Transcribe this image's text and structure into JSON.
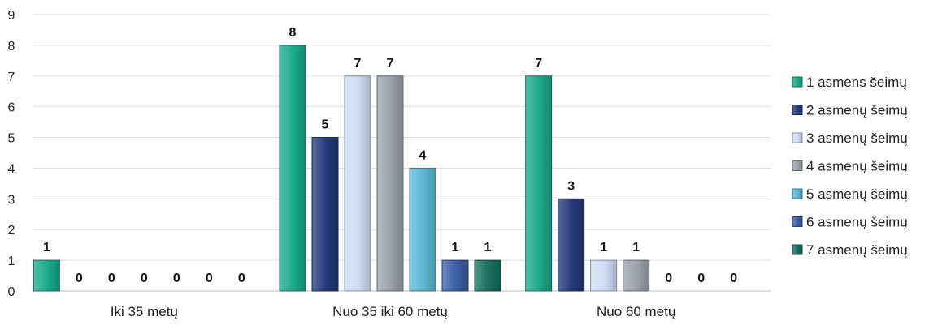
{
  "chart_data": {
    "type": "bar",
    "title": "",
    "xlabel": "",
    "ylabel": "",
    "ylim": [
      0,
      9
    ],
    "yticks": [
      0,
      1,
      2,
      3,
      4,
      5,
      6,
      7,
      8,
      9
    ],
    "grid": true,
    "legend_position": "right",
    "categories": [
      "Iki 35 metų",
      "Nuo 35 iki 60 metų",
      "Nuo 60 metų"
    ],
    "series": [
      {
        "name": "1 asmens šeimų",
        "values": [
          1,
          8,
          7
        ],
        "color": "#1aa98a"
      },
      {
        "name": "2 asmenų šeimų",
        "values": [
          0,
          5,
          3
        ],
        "color": "#233a7a"
      },
      {
        "name": "3 asmenų šeimų",
        "values": [
          0,
          7,
          1
        ],
        "color": "#cfdcf6"
      },
      {
        "name": "4 asmenų šeimų",
        "values": [
          0,
          7,
          1
        ],
        "color": "#9aa1a8"
      },
      {
        "name": "5 asmenų šeimų",
        "values": [
          0,
          4,
          0
        ],
        "color": "#5ab6d3"
      },
      {
        "name": "6 asmenų šeimų",
        "values": [
          0,
          1,
          0
        ],
        "color": "#3c5ea6"
      },
      {
        "name": "7 asmenų šeimų",
        "values": [
          0,
          1,
          0
        ],
        "color": "#17705e"
      }
    ],
    "data_labels": true
  }
}
